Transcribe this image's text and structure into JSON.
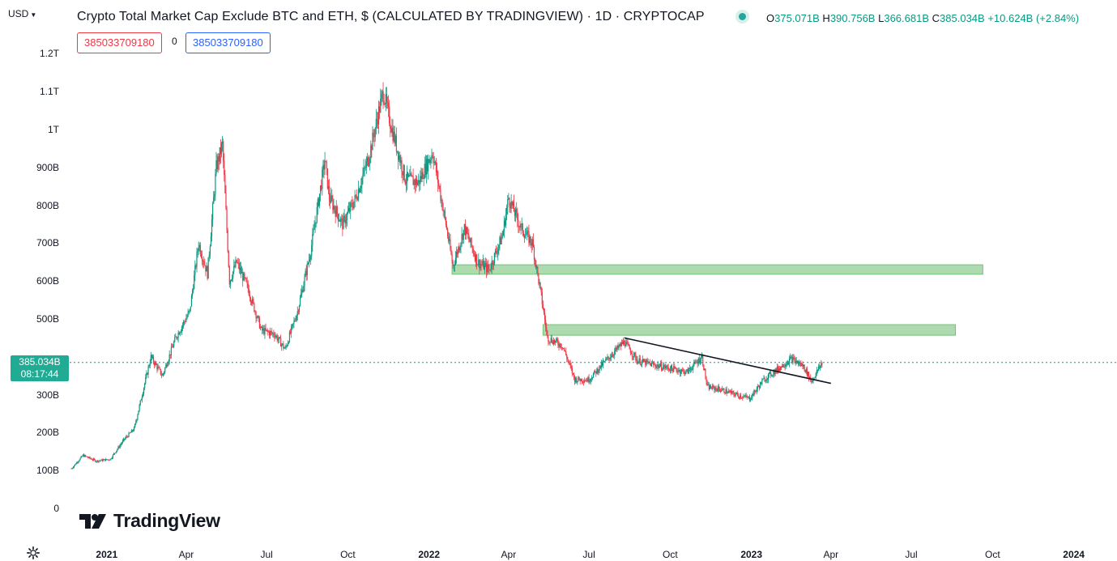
{
  "header": {
    "currency": "USD",
    "title": "Crypto Total Market Cap Exclude BTC and ETH, $ (CALCULATED BY TRADINGVIEW) · 1D · CRYPTOCAP",
    "ohlc": {
      "o_label": "O",
      "o": "375.071B",
      "h_label": "H",
      "h": "390.756B",
      "l_label": "L",
      "l": "366.681B",
      "c_label": "C",
      "c": "385.034B",
      "change": "+10.624B (+2.84%)"
    },
    "bid": "385033709180",
    "spread": "0",
    "ask": "385033709180"
  },
  "price_badge": {
    "price": "385.034B",
    "countdown": "08:17:44"
  },
  "logo_text": "TradingView",
  "colors": {
    "up": "#089981",
    "down": "#f23645",
    "zone": "#a5d6a7",
    "zone_border": "#66bb6a",
    "current_line": "#089981",
    "badge": "#22ab94"
  },
  "icons": {
    "settings": "gear-icon",
    "logo": "tradingview-logo-icon",
    "dropdown": "chevron-down-icon"
  },
  "chart_data": {
    "type": "candlestick",
    "title": "Crypto Total Market Cap Exclude BTC and ETH, $ (CALCULATED BY TRADINGVIEW) · 1D · CRYPTOCAP",
    "y_unit": "USD",
    "ylim": [
      0,
      1250000000000
    ],
    "y_ticks": [
      {
        "v": 0,
        "label": "0"
      },
      {
        "v": 100000000000,
        "label": "100B"
      },
      {
        "v": 200000000000,
        "label": "200B"
      },
      {
        "v": 300000000000,
        "label": "300B"
      },
      {
        "v": 500000000000,
        "label": "500B"
      },
      {
        "v": 600000000000,
        "label": "600B"
      },
      {
        "v": 700000000000,
        "label": "700B"
      },
      {
        "v": 800000000000,
        "label": "800B"
      },
      {
        "v": 900000000000,
        "label": "900B"
      },
      {
        "v": 1000000000000,
        "label": "1T"
      },
      {
        "v": 1100000000000,
        "label": "1.1T"
      },
      {
        "v": 1200000000000,
        "label": "1.2T"
      }
    ],
    "x_range": [
      "2020-11-20",
      "2024-01-05"
    ],
    "x_ticks": [
      {
        "date": "2021-01-01",
        "label": "2021",
        "bold": true
      },
      {
        "date": "2021-04-01",
        "label": "Apr",
        "bold": false
      },
      {
        "date": "2021-07-01",
        "label": "Jul",
        "bold": false
      },
      {
        "date": "2021-10-01",
        "label": "Oct",
        "bold": false
      },
      {
        "date": "2022-01-01",
        "label": "2022",
        "bold": true
      },
      {
        "date": "2022-04-01",
        "label": "Apr",
        "bold": false
      },
      {
        "date": "2022-07-01",
        "label": "Jul",
        "bold": false
      },
      {
        "date": "2022-10-01",
        "label": "Oct",
        "bold": false
      },
      {
        "date": "2023-01-01",
        "label": "2023",
        "bold": true
      },
      {
        "date": "2023-04-01",
        "label": "Apr",
        "bold": false
      },
      {
        "date": "2023-07-01",
        "label": "Jul",
        "bold": false
      },
      {
        "date": "2023-10-01",
        "label": "Oct",
        "bold": false
      },
      {
        "date": "2024-01-01",
        "label": "2024",
        "bold": true
      }
    ],
    "price_path": [
      [
        "2020-11-22",
        105000000000
      ],
      [
        "2020-12-05",
        140000000000
      ],
      [
        "2020-12-20",
        125000000000
      ],
      [
        "2021-01-05",
        130000000000
      ],
      [
        "2021-01-20",
        180000000000
      ],
      [
        "2021-02-01",
        210000000000
      ],
      [
        "2021-02-20",
        400000000000
      ],
      [
        "2021-03-05",
        350000000000
      ],
      [
        "2021-03-20",
        450000000000
      ],
      [
        "2021-04-05",
        520000000000
      ],
      [
        "2021-04-15",
        700000000000
      ],
      [
        "2021-04-25",
        620000000000
      ],
      [
        "2021-05-05",
        900000000000
      ],
      [
        "2021-05-12",
        960000000000
      ],
      [
        "2021-05-20",
        600000000000
      ],
      [
        "2021-05-28",
        650000000000
      ],
      [
        "2021-06-10",
        580000000000
      ],
      [
        "2021-06-25",
        470000000000
      ],
      [
        "2021-07-10",
        460000000000
      ],
      [
        "2021-07-22",
        420000000000
      ],
      [
        "2021-08-05",
        520000000000
      ],
      [
        "2021-08-20",
        680000000000
      ],
      [
        "2021-09-05",
        920000000000
      ],
      [
        "2021-09-10",
        820000000000
      ],
      [
        "2021-09-25",
        750000000000
      ],
      [
        "2021-10-10",
        820000000000
      ],
      [
        "2021-10-25",
        930000000000
      ],
      [
        "2021-11-10",
        1100000000000
      ],
      [
        "2021-11-20",
        1000000000000
      ],
      [
        "2021-12-05",
        870000000000
      ],
      [
        "2021-12-20",
        860000000000
      ],
      [
        "2022-01-05",
        940000000000
      ],
      [
        "2022-01-20",
        750000000000
      ],
      [
        "2022-01-28",
        640000000000
      ],
      [
        "2022-02-10",
        740000000000
      ],
      [
        "2022-02-25",
        650000000000
      ],
      [
        "2022-03-10",
        630000000000
      ],
      [
        "2022-03-25",
        720000000000
      ],
      [
        "2022-04-01",
        820000000000
      ],
      [
        "2022-04-15",
        740000000000
      ],
      [
        "2022-04-28",
        700000000000
      ],
      [
        "2022-05-08",
        560000000000
      ],
      [
        "2022-05-15",
        450000000000
      ],
      [
        "2022-06-01",
        430000000000
      ],
      [
        "2022-06-15",
        340000000000
      ],
      [
        "2022-07-01",
        340000000000
      ],
      [
        "2022-07-20",
        390000000000
      ],
      [
        "2022-08-10",
        440000000000
      ],
      [
        "2022-08-25",
        390000000000
      ],
      [
        "2022-09-10",
        380000000000
      ],
      [
        "2022-09-30",
        370000000000
      ],
      [
        "2022-10-20",
        360000000000
      ],
      [
        "2022-11-06",
        400000000000
      ],
      [
        "2022-11-12",
        320000000000
      ],
      [
        "2022-11-25",
        315000000000
      ],
      [
        "2022-12-15",
        300000000000
      ],
      [
        "2022-12-30",
        290000000000
      ],
      [
        "2023-01-15",
        340000000000
      ],
      [
        "2023-02-01",
        370000000000
      ],
      [
        "2023-02-15",
        395000000000
      ],
      [
        "2023-03-01",
        375000000000
      ],
      [
        "2023-03-10",
        335000000000
      ],
      [
        "2023-03-22",
        385000000000
      ]
    ],
    "zones": [
      {
        "from": "2022-01-27",
        "to": "2023-09-20",
        "low": 618000000000,
        "high": 643000000000
      },
      {
        "from": "2022-05-10",
        "to": "2023-08-20",
        "low": 457000000000,
        "high": 485000000000
      }
    ],
    "trendline": {
      "from": [
        "2022-08-10",
        450000000000
      ],
      "to": [
        "2023-04-01",
        330000000000
      ]
    },
    "current_price": 385034000000
  }
}
